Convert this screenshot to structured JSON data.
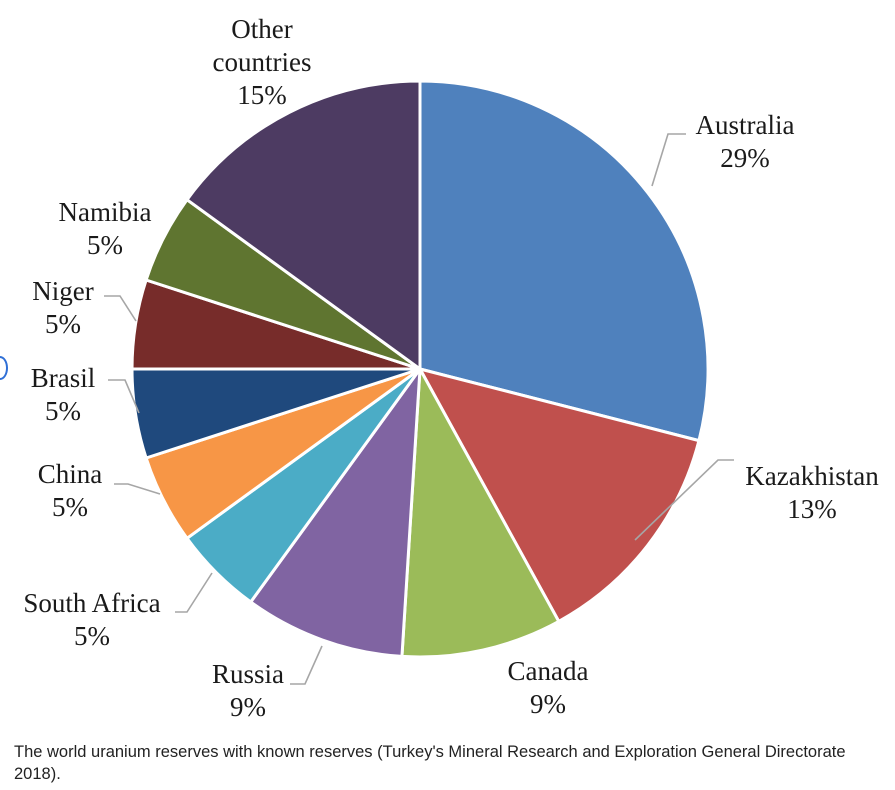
{
  "chart_data": {
    "type": "pie",
    "title": "",
    "slices": [
      {
        "label": "Australia",
        "pct_label": "29%",
        "value": 29,
        "color": "#4f81bd"
      },
      {
        "label": "Kazakhistan",
        "pct_label": "13%",
        "value": 13,
        "color": "#c0504d"
      },
      {
        "label": "Canada",
        "pct_label": "9%",
        "value": 9,
        "color": "#9bbb59"
      },
      {
        "label": "Russia",
        "pct_label": "9%",
        "value": 9,
        "color": "#8064a2"
      },
      {
        "label": "South Africa",
        "pct_label": "5%",
        "value": 5,
        "color": "#4bacc6"
      },
      {
        "label": "China",
        "pct_label": "5%",
        "value": 5,
        "color": "#f79646"
      },
      {
        "label": "Brasil",
        "pct_label": "5%",
        "value": 5,
        "color": "#1f497d"
      },
      {
        "label": "Niger",
        "pct_label": "5%",
        "value": 5,
        "color": "#772c2a"
      },
      {
        "label": "Namibia",
        "pct_label": "5%",
        "value": 5,
        "color": "#5f7530"
      },
      {
        "label": "Other\ncountries",
        "pct_label": "15%",
        "value": 15,
        "color": "#4d3b62"
      }
    ]
  },
  "caption": "The world uranium reserves with known reserves (Turkey's Mineral Research and Exploration General Directorate 2018)."
}
